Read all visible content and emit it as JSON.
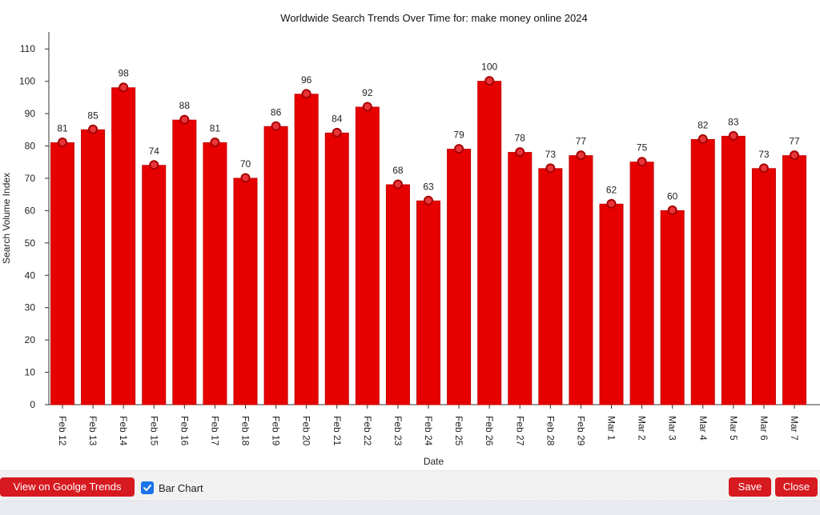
{
  "colors": {
    "bar": "#e60000",
    "bar_edge": "#c40000",
    "marker_fill": "#e8353a",
    "marker_edge": "#a80000",
    "button": "#d71920",
    "axis": "#333333",
    "checkbox": "#1a73e8"
  },
  "chart_data": {
    "type": "bar",
    "title": "Worldwide Search Trends Over Time for: make money online 2024",
    "xlabel": "Date",
    "ylabel": "Search Volume Index",
    "ylim": [
      0,
      115
    ],
    "yticks": [
      0,
      10,
      20,
      30,
      40,
      50,
      60,
      70,
      80,
      90,
      100,
      110
    ],
    "grid": false,
    "categories": [
      "Feb 12",
      "Feb 13",
      "Feb 14",
      "Feb 15",
      "Feb 16",
      "Feb 17",
      "Feb 18",
      "Feb 19",
      "Feb 20",
      "Feb 21",
      "Feb 22",
      "Feb 23",
      "Feb 24",
      "Feb 25",
      "Feb 26",
      "Feb 27",
      "Feb 28",
      "Feb 29",
      "Mar 1",
      "Mar 2",
      "Mar 3",
      "Mar 4",
      "Mar 5",
      "Mar 6",
      "Mar 7"
    ],
    "series": [
      {
        "name": "make money online 2024",
        "values": [
          81,
          85,
          98,
          74,
          88,
          81,
          70,
          86,
          96,
          84,
          92,
          68,
          63,
          79,
          100,
          78,
          73,
          77,
          62,
          75,
          60,
          82,
          83,
          73,
          77
        ]
      }
    ],
    "data_labels": true,
    "markers": true
  },
  "controls": {
    "trends_button": "View on Goolge Trends",
    "bar_chart_toggle": {
      "label": "Bar Chart",
      "checked": true
    },
    "save_button": "Save",
    "close_button": "Close"
  }
}
